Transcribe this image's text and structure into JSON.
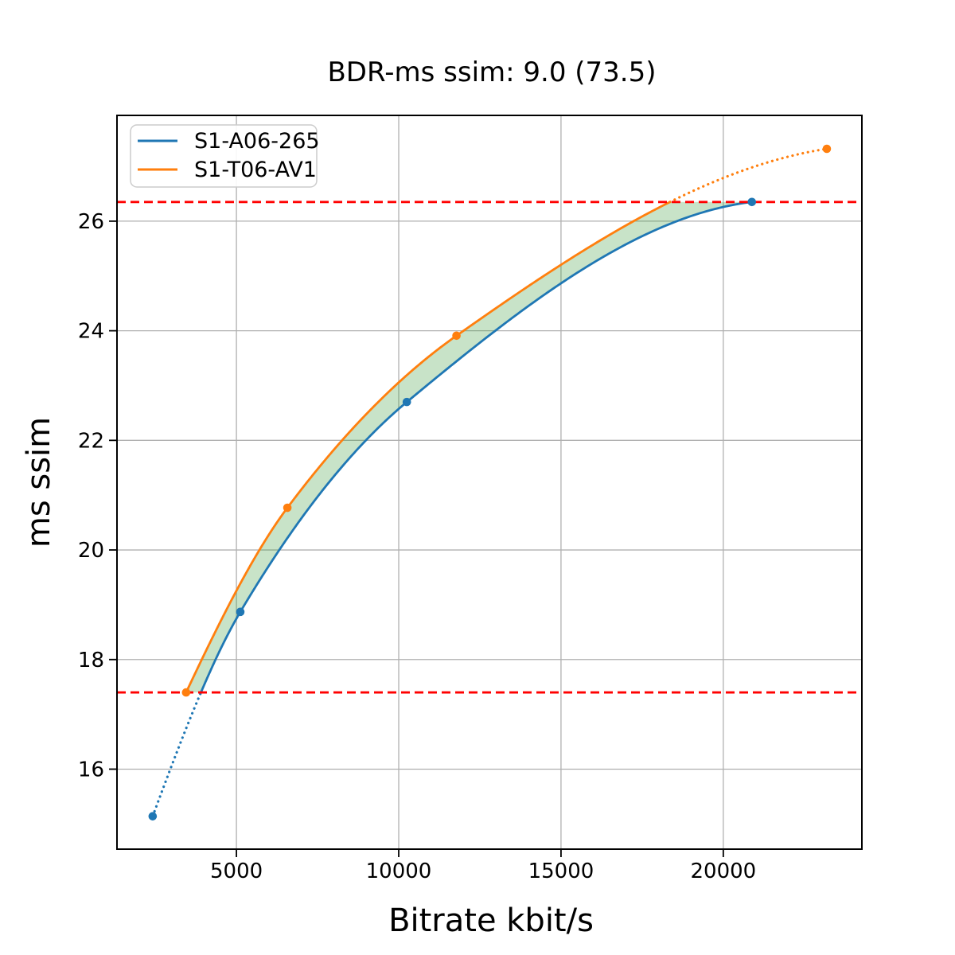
{
  "chart_data": {
    "type": "line",
    "title": "BDR-ms ssim: 9.0 (73.5)",
    "xlabel": "Bitrate kbit/s",
    "ylabel": "ms ssim",
    "xlim": [
      1320,
      24270
    ],
    "ylim": [
      14.54,
      27.93
    ],
    "xticks": [
      5000,
      10000,
      15000,
      20000
    ],
    "yticks": [
      16,
      18,
      20,
      22,
      24,
      26
    ],
    "grid": true,
    "legend_position": "upper left",
    "series": [
      {
        "name": "S1-A06-265",
        "color": "#1f77b4",
        "x": [
          2420,
          5120,
          10250,
          20880
        ],
        "y": [
          15.14,
          18.87,
          22.7,
          26.35
        ],
        "dotted_below_y": 17.4
      },
      {
        "name": "S1-T06-AV1",
        "color": "#ff7f0e",
        "x": [
          3450,
          6570,
          11780,
          23190
        ],
        "y": [
          17.4,
          20.77,
          23.91,
          27.32
        ],
        "dotted_above_y": 26.35
      }
    ],
    "hlines": [
      {
        "y": 26.35,
        "color": "#ff0000",
        "style": "dashed"
      },
      {
        "y": 17.4,
        "color": "#ff0000",
        "style": "dashed"
      }
    ],
    "shaded_region": {
      "between": [
        "S1-T06-AV1",
        "S1-A06-265"
      ],
      "from_y": 17.4,
      "to_y": 26.35,
      "color": "#3a9a3a",
      "opacity": 0.28
    },
    "colors": {
      "grid": "#b0b0b0",
      "frame": "#000000",
      "hline": "#ff0000",
      "background": "#ffffff"
    }
  }
}
